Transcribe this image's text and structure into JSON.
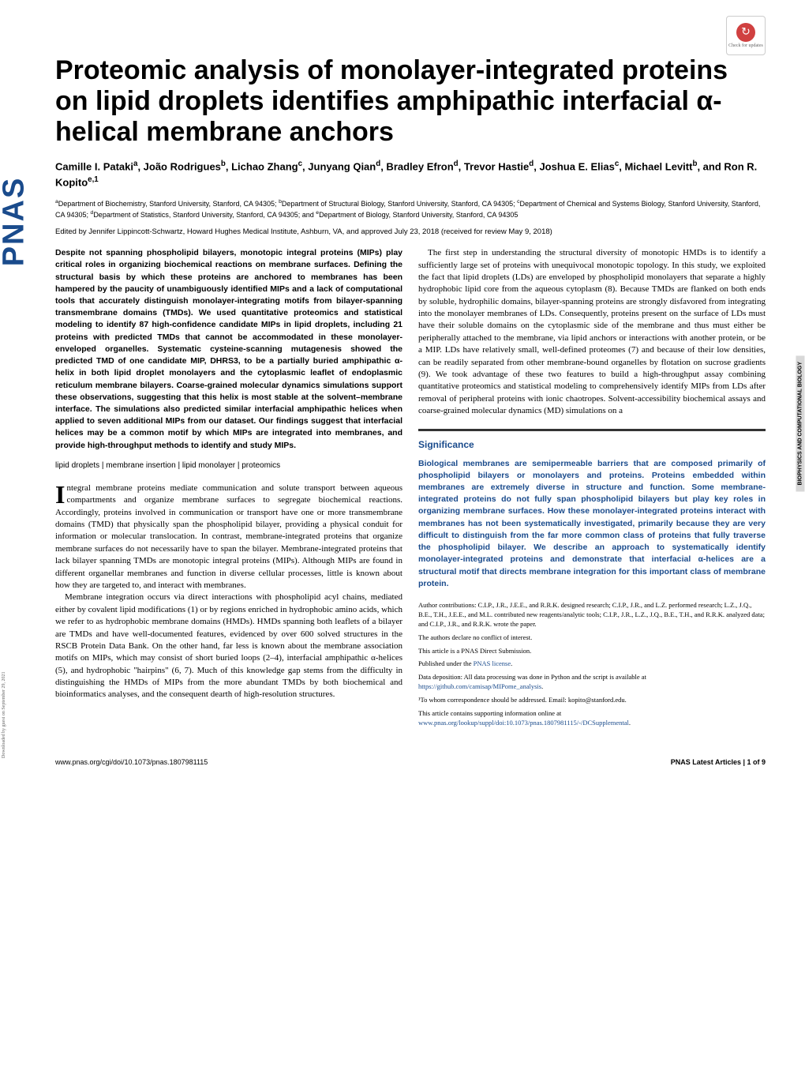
{
  "journal_sidebar": "PNAS",
  "download_note": "Downloaded by guest on September 29, 2021",
  "check_updates_label": "Check for updates",
  "title": "Proteomic analysis of monolayer-integrated proteins on lipid droplets identifies amphipathic interfacial α-helical membrane anchors",
  "authors_html": "Camille I. Pataki<sup>a</sup>, João Rodrigues<sup>b</sup>, Lichao Zhang<sup>c</sup>, Junyang Qian<sup>d</sup>, Bradley Efron<sup>d</sup>, Trevor Hastie<sup>d</sup>, Joshua E. Elias<sup>c</sup>, Michael Levitt<sup>b</sup>, and Ron R. Kopito<sup>e,1</sup>",
  "affiliations_html": "<sup>a</sup>Department of Biochemistry, Stanford University, Stanford, CA 94305; <sup>b</sup>Department of Structural Biology, Stanford University, Stanford, CA 94305; <sup>c</sup>Department of Chemical and Systems Biology, Stanford University, Stanford, CA 94305; <sup>d</sup>Department of Statistics, Stanford University, Stanford, CA 94305; and <sup>e</sup>Department of Biology, Stanford University, Stanford, CA 94305",
  "edited_by": "Edited by Jennifer Lippincott-Schwartz, Howard Hughes Medical Institute, Ashburn, VA, and approved July 23, 2018 (received for review May 9, 2018)",
  "abstract": "Despite not spanning phospholipid bilayers, monotopic integral proteins (MIPs) play critical roles in organizing biochemical reactions on membrane surfaces. Defining the structural basis by which these proteins are anchored to membranes has been hampered by the paucity of unambiguously identified MIPs and a lack of computational tools that accurately distinguish monolayer-integrating motifs from bilayer-spanning transmembrane domains (TMDs). We used quantitative proteomics and statistical modeling to identify 87 high-confidence candidate MIPs in lipid droplets, including 21 proteins with predicted TMDs that cannot be accommodated in these monolayer-enveloped organelles. Systematic cysteine-scanning mutagenesis showed the predicted TMD of one candidate MIP, DHRS3, to be a partially buried amphipathic α-helix in both lipid droplet monolayers and the cytoplasmic leaflet of endoplasmic reticulum membrane bilayers. Coarse-grained molecular dynamics simulations support these observations, suggesting that this helix is most stable at the solvent–membrane interface. The simulations also predicted similar interfacial amphipathic helices when applied to seven additional MIPs from our dataset. Our findings suggest that interfacial helices may be a common motif by which MIPs are integrated into membranes, and provide high-throughput methods to identify and study MIPs.",
  "keywords": "lipid droplets | membrane insertion | lipid monolayer | proteomics",
  "body_left_p1_dropcap": "I",
  "body_left_p1": "ntegral membrane proteins mediate communication and solute transport between aqueous compartments and organize membrane surfaces to segregate biochemical reactions. Accordingly, proteins involved in communication or transport have one or more transmembrane domains (TMD) that physically span the phospholipid bilayer, providing a physical conduit for information or molecular translocation. In contrast, membrane-integrated proteins that organize membrane surfaces do not necessarily have to span the bilayer. Membrane-integrated proteins that lack bilayer spanning TMDs are monotopic integral proteins (MIPs). Although MIPs are found in different organellar membranes and function in diverse cellular processes, little is known about how they are targeted to, and interact with membranes.",
  "body_left_p2": "Membrane integration occurs via direct interactions with phospholipid acyl chains, mediated either by covalent lipid modifications (1) or by regions enriched in hydrophobic amino acids, which we refer to as hydrophobic membrane domains (HMDs). HMDs spanning both leaflets of a bilayer are TMDs and have well-documented features, evidenced by over 600 solved structures in the RSCB Protein Data Bank. On the other hand, far less is known about the membrane association motifs on MIPs, which may consist of short buried loops (2–4), interfacial amphipathic α-helices (5), and hydrophobic \"hairpins\" (6, 7). Much of this knowledge gap stems from the difficulty in distinguishing the HMDs of MIPs from the more abundant TMDs by both biochemical and bioinformatics analyses, and the consequent dearth of high-resolution structures.",
  "body_right_p1": "The first step in understanding the structural diversity of monotopic HMDs is to identify a sufficiently large set of proteins with unequivocal monotopic topology. In this study, we exploited the fact that lipid droplets (LDs) are enveloped by phospholipid monolayers that separate a highly hydrophobic lipid core from the aqueous cytoplasm (8). Because TMDs are flanked on both ends by soluble, hydrophilic domains, bilayer-spanning proteins are strongly disfavored from integrating into the monolayer membranes of LDs. Consequently, proteins present on the surface of LDs must have their soluble domains on the cytoplasmic side of the membrane and thus must either be peripherally attached to the membrane, via lipid anchors or interactions with another protein, or be a MIP. LDs have relatively small, well-defined proteomes (7) and because of their low densities, can be readily separated from other membrane-bound organelles by flotation on sucrose gradients (9). We took advantage of these two features to build a high-throughput assay combining quantitative proteomics and statistical modeling to comprehensively identify MIPs from LDs after removal of peripheral proteins with ionic chaotropes. Solvent-accessibility biochemical assays and coarse-grained molecular dynamics (MD) simulations on a",
  "significance_heading": "Significance",
  "significance_text": "Biological membranes are semipermeable barriers that are composed primarily of phospholipid bilayers or monolayers and proteins. Proteins embedded within membranes are extremely diverse in structure and function. Some membrane-integrated proteins do not fully span phospholipid bilayers but play key roles in organizing membrane surfaces. How these monolayer-integrated proteins interact with membranes has not been systematically investigated, primarily because they are very difficult to distinguish from the far more common class of proteins that fully traverse the phospholipid bilayer. We describe an approach to systematically identify monolayer-integrated proteins and demonstrate that interfacial α-helices are a structural motif that directs membrane integration for this important class of membrane protein.",
  "footnotes": {
    "contributions": "Author contributions: C.I.P., J.R., J.E.E., and R.R.K. designed research; C.I.P., J.R., and L.Z. performed research; L.Z., J.Q., B.E., T.H., J.E.E., and M.L. contributed new reagents/analytic tools; C.I.P., J.R., L.Z., J.Q., B.E., T.H., and R.R.K. analyzed data; and C.I.P., J.R., and R.R.K. wrote the paper.",
    "conflict": "The authors declare no conflict of interest.",
    "submission": "This article is a PNAS Direct Submission.",
    "license_prefix": "Published under the ",
    "license_link": "PNAS license",
    "license_suffix": ".",
    "data_prefix": "Data deposition: All data processing was done in Python and the script is available at ",
    "data_link": "https://github.com/camisap/MIPome_analysis",
    "data_suffix": ".",
    "correspondence": "¹To whom correspondence should be addressed. Email: kopito@stanford.edu.",
    "supporting_prefix": "This article contains supporting information online at ",
    "supporting_link": "www.pnas.org/lookup/suppl/doi:10.1073/pnas.1807981115/-/DCSupplemental",
    "supporting_suffix": "."
  },
  "section_label": "BIOPHYSICS AND COMPUTATIONAL BIOLOGY",
  "footer_left": "www.pnas.org/cgi/doi/10.1073/pnas.1807981115",
  "footer_right": "PNAS Latest Articles | 1 of 9",
  "colors": {
    "pnas_blue": "#1a4b8c",
    "text": "#000000",
    "background": "#ffffff",
    "section_bg": "#d8d8d8",
    "check_icon": "#d04040"
  },
  "typography": {
    "title_size": 34,
    "author_size": 13,
    "affiliation_size": 9,
    "body_size": 11,
    "abstract_size": 10.5,
    "footnote_size": 8.5
  }
}
